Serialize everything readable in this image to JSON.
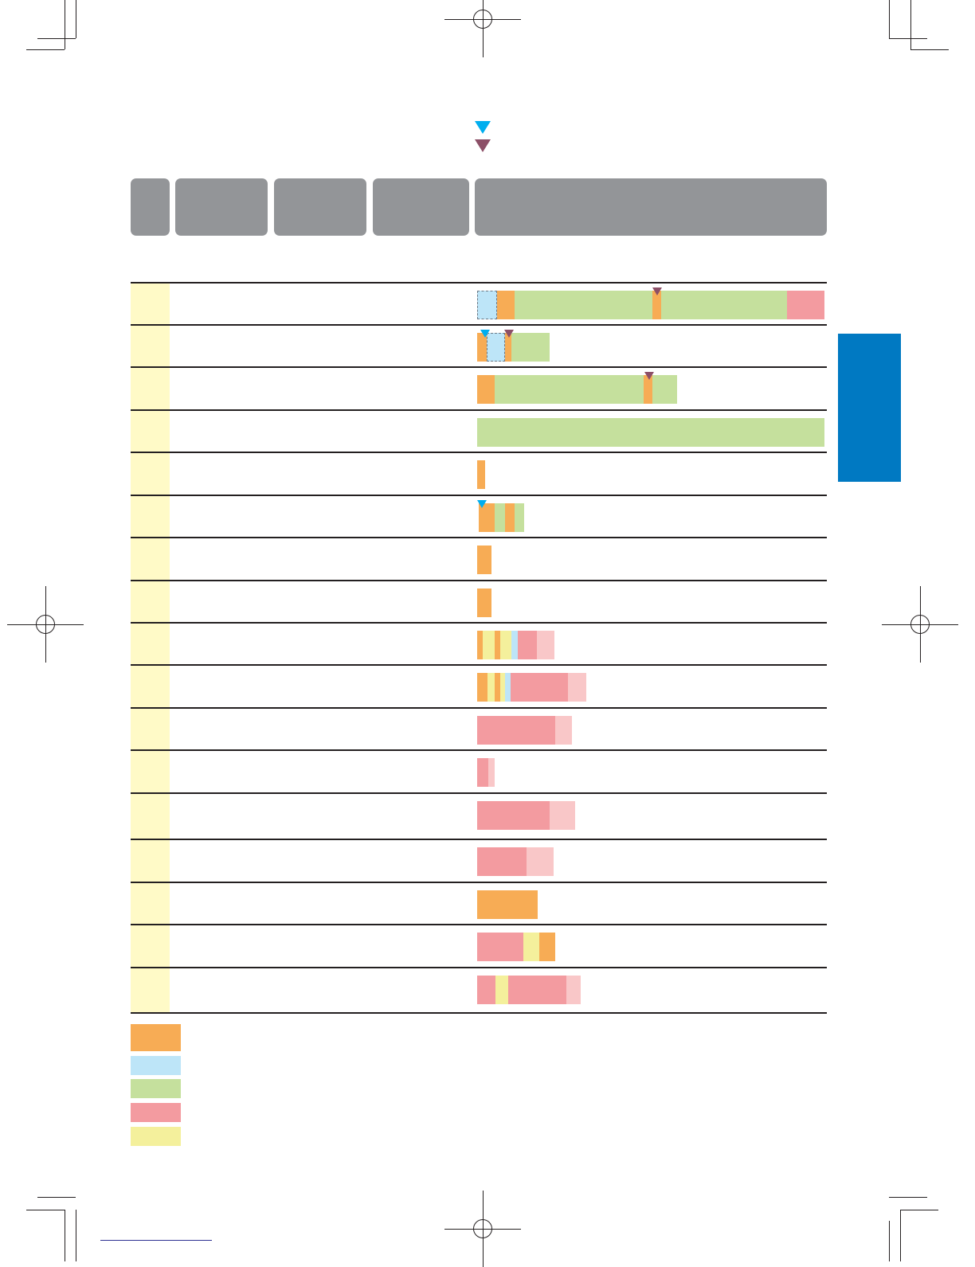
{
  "colors": {
    "orange": "#f7ac55",
    "light_blue": "#bde5f8",
    "green": "#c5e09d",
    "pink": "#f39ba0",
    "light_pink": "#f9c7c8",
    "yellow": "#f4f09c",
    "first_column": "#fffac7",
    "header_gray": "#939598",
    "side_tab_blue": "#0079c2",
    "marker_cyan": "#00aeef",
    "marker_purple": "#8c4f67"
  },
  "legend": [
    "orange",
    "light_blue",
    "green",
    "pink",
    "yellow"
  ],
  "marker_key": [
    "marker_cyan",
    "marker_purple"
  ]
}
